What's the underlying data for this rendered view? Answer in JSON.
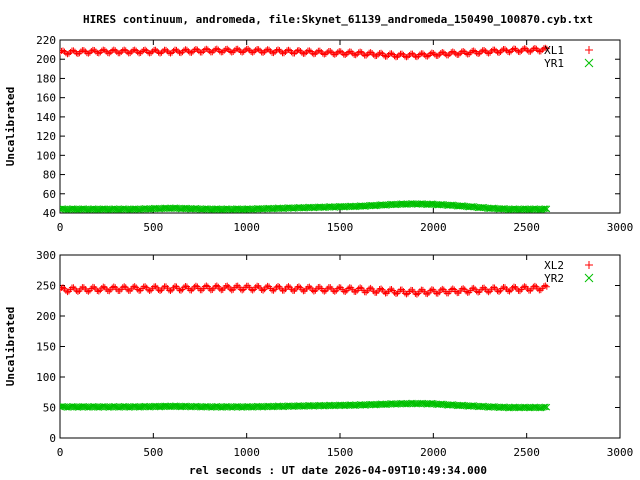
{
  "title": "HIRES continuum, andromeda, file:Skynet_61139_andromeda_150490_100870.cyb.txt",
  "xlabel": "rel seconds : UT date 2026-04-09T10:49:34.000",
  "colors": {
    "series_a": "#ff0000",
    "series_b": "#00c000",
    "axis": "#000000"
  },
  "chart_data": [
    {
      "type": "scatter",
      "ylabel": "Uncalibrated",
      "xlim": [
        0,
        3000
      ],
      "ylim": [
        40,
        220
      ],
      "xticks": [
        0,
        500,
        1000,
        1500,
        2000,
        2500,
        3000
      ],
      "yticks": [
        40,
        60,
        80,
        100,
        120,
        140,
        160,
        180,
        200,
        220
      ],
      "grid": false,
      "legend_position": "top-right",
      "x_range": [
        0,
        2610
      ],
      "series": [
        {
          "name": "XL1",
          "marker": "plus",
          "color": "#ff0000",
          "oscillation_amplitude": 2,
          "oscillation_period_s": 55,
          "x": [
            0,
            200,
            400,
            600,
            800,
            1000,
            1200,
            1400,
            1600,
            1800,
            1900,
            2000,
            2200,
            2400,
            2600
          ],
          "y": [
            207,
            208,
            208,
            208,
            209,
            209,
            208,
            207,
            206,
            204,
            204,
            205,
            207,
            209,
            210
          ]
        },
        {
          "name": "YR1",
          "marker": "cross",
          "color": "#00c000",
          "oscillation_amplitude": 0.6,
          "oscillation_period_s": 55,
          "x": [
            0,
            200,
            400,
            600,
            800,
            1000,
            1200,
            1400,
            1600,
            1700,
            1800,
            1900,
            2000,
            2100,
            2200,
            2300,
            2400,
            2600
          ],
          "y": [
            44,
            44,
            44,
            45,
            44,
            44,
            45,
            46,
            47,
            48,
            49,
            49.5,
            49,
            48,
            46.5,
            45,
            44,
            44
          ]
        }
      ]
    },
    {
      "type": "scatter",
      "ylabel": "Uncalibrated",
      "xlim": [
        0,
        3000
      ],
      "ylim": [
        0,
        300
      ],
      "xticks": [
        0,
        500,
        1000,
        1500,
        2000,
        2500,
        3000
      ],
      "yticks": [
        0,
        50,
        100,
        150,
        200,
        250,
        300
      ],
      "grid": false,
      "legend_position": "top-right",
      "x_range": [
        0,
        2610
      ],
      "series": [
        {
          "name": "XL2",
          "marker": "plus",
          "color": "#ff0000",
          "oscillation_amplitude": 4,
          "oscillation_period_s": 55,
          "x": [
            0,
            200,
            400,
            600,
            800,
            1000,
            1200,
            1400,
            1600,
            1800,
            1900,
            2000,
            2200,
            2400,
            2600
          ],
          "y": [
            243,
            244,
            245,
            245,
            246,
            246,
            245,
            244,
            243,
            240,
            239,
            240,
            242,
            244,
            246
          ]
        },
        {
          "name": "YR2",
          "marker": "cross",
          "color": "#00c000",
          "oscillation_amplitude": 1,
          "oscillation_period_s": 55,
          "x": [
            0,
            200,
            400,
            600,
            800,
            1000,
            1200,
            1400,
            1600,
            1700,
            1800,
            1900,
            2000,
            2100,
            2200,
            2300,
            2400,
            2600
          ],
          "y": [
            51,
            51,
            51,
            52,
            51,
            51,
            52,
            53,
            54,
            55,
            56,
            56.5,
            56,
            54,
            52.5,
            51,
            50,
            50
          ]
        }
      ]
    }
  ]
}
